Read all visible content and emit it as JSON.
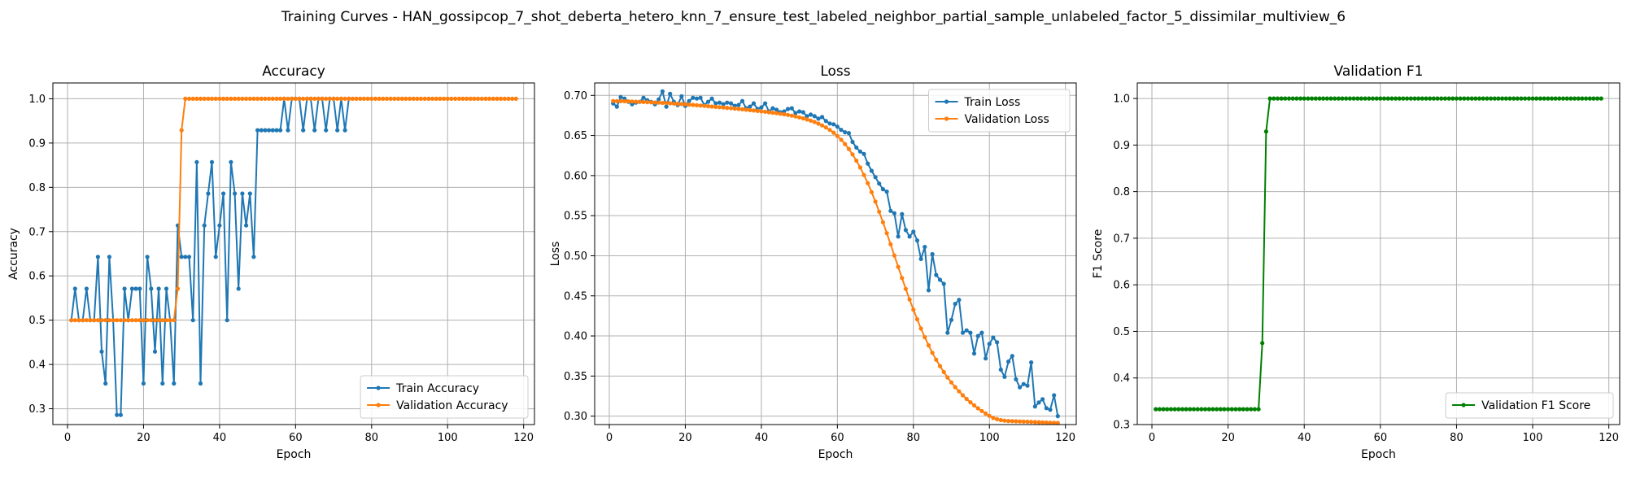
{
  "figure_title": "Training Curves - HAN_gossipcop_7_shot_deberta_hetero_knn_7_ensure_test_labeled_neighbor_partial_sample_unlabeled_factor_5_dissimilar_multiview_6",
  "colors": {
    "blue": "#1f77b4",
    "orange": "#ff7f0e",
    "green": "#008000",
    "grid": "#b0b0b0"
  },
  "chart_data": [
    {
      "type": "line",
      "title": "Accuracy",
      "xlabel": "Epoch",
      "ylabel": "Accuracy",
      "xlim": [
        -3.85,
        122.85
      ],
      "ylim": [
        0.2643,
        1.0357
      ],
      "xticks": [
        0,
        20,
        40,
        60,
        80,
        100,
        120
      ],
      "yticks": [
        0.3,
        0.4,
        0.5,
        0.6,
        0.7,
        0.8,
        0.9,
        1.0
      ],
      "ytick_labels": [
        "0.3",
        "0.4",
        "0.5",
        "0.6",
        "0.7",
        "0.8",
        "0.9",
        "1.0"
      ],
      "grid": true,
      "legend_position": "lower-right",
      "series": [
        {
          "name": "Train Accuracy",
          "color": "#1f77b4",
          "x_start": 1,
          "values": [
            0.5,
            0.571,
            0.5,
            0.5,
            0.571,
            0.5,
            0.5,
            0.643,
            0.429,
            0.357,
            0.643,
            0.5,
            0.286,
            0.286,
            0.571,
            0.5,
            0.571,
            0.571,
            0.571,
            0.357,
            0.643,
            0.571,
            0.429,
            0.571,
            0.357,
            0.571,
            0.5,
            0.357,
            0.714,
            0.643,
            0.643,
            0.643,
            0.5,
            0.857,
            0.357,
            0.714,
            0.786,
            0.857,
            0.643,
            0.714,
            0.786,
            0.5,
            0.857,
            0.786,
            0.571,
            0.786,
            0.714,
            0.786,
            0.643,
            0.929,
            0.929,
            0.929,
            0.929,
            0.929,
            0.929,
            0.929,
            1.0,
            0.929,
            1.0,
            1.0,
            1.0,
            0.929,
            1.0,
            1.0,
            0.929,
            1.0,
            1.0,
            0.929,
            1.0,
            1.0,
            0.929,
            1.0,
            0.929,
            1.0
          ]
        },
        {
          "name": "Validation Accuracy",
          "color": "#ff7f0e",
          "x_start": 1,
          "values": [
            0.5,
            0.5,
            0.5,
            0.5,
            0.5,
            0.5,
            0.5,
            0.5,
            0.5,
            0.5,
            0.5,
            0.5,
            0.5,
            0.5,
            0.5,
            0.5,
            0.5,
            0.5,
            0.5,
            0.5,
            0.5,
            0.5,
            0.5,
            0.5,
            0.5,
            0.5,
            0.5,
            0.5,
            0.571,
            0.929,
            1.0,
            1.0,
            1.0,
            1.0,
            1.0,
            1.0,
            1.0,
            1.0,
            1.0,
            1.0,
            1.0,
            1.0,
            1.0,
            1.0,
            1.0,
            1.0,
            1.0,
            1.0,
            1.0,
            1.0,
            1.0,
            1.0,
            1.0,
            1.0,
            1.0,
            1.0,
            1.0,
            1.0,
            1.0,
            1.0,
            1.0,
            1.0,
            1.0,
            1.0,
            1.0,
            1.0,
            1.0,
            1.0,
            1.0,
            1.0,
            1.0,
            1.0,
            1.0,
            1.0,
            1.0,
            1.0,
            1.0,
            1.0,
            1.0,
            1.0,
            1.0,
            1.0,
            1.0,
            1.0,
            1.0,
            1.0,
            1.0,
            1.0,
            1.0,
            1.0,
            1.0,
            1.0,
            1.0,
            1.0,
            1.0,
            1.0,
            1.0,
            1.0,
            1.0,
            1.0,
            1.0,
            1.0,
            1.0,
            1.0,
            1.0,
            1.0,
            1.0,
            1.0,
            1.0,
            1.0,
            1.0,
            1.0,
            1.0,
            1.0,
            1.0,
            1.0,
            1.0,
            1.0
          ]
        }
      ]
    },
    {
      "type": "line",
      "title": "Loss",
      "xlabel": "Epoch",
      "ylabel": "Loss",
      "xlim": [
        -3.85,
        122.85
      ],
      "ylim": [
        0.2895,
        0.7155
      ],
      "xticks": [
        0,
        20,
        40,
        60,
        80,
        100,
        120
      ],
      "yticks": [
        0.3,
        0.35,
        0.4,
        0.45,
        0.5,
        0.55,
        0.6,
        0.65,
        0.7
      ],
      "ytick_labels": [
        "0.30",
        "0.35",
        "0.40",
        "0.45",
        "0.50",
        "0.55",
        "0.60",
        "0.65",
        "0.70"
      ],
      "grid": true,
      "legend_position": "upper-right",
      "series": [
        {
          "name": "Train Loss",
          "color": "#1f77b4",
          "x_start": 1,
          "values": [
            0.69,
            0.686,
            0.698,
            0.696,
            0.692,
            0.689,
            0.691,
            0.692,
            0.697,
            0.694,
            0.692,
            0.689,
            0.695,
            0.705,
            0.686,
            0.702,
            0.692,
            0.688,
            0.699,
            0.687,
            0.693,
            0.697,
            0.696,
            0.697,
            0.688,
            0.692,
            0.696,
            0.69,
            0.691,
            0.689,
            0.691,
            0.69,
            0.687,
            0.688,
            0.693,
            0.684,
            0.686,
            0.69,
            0.683,
            0.685,
            0.69,
            0.68,
            0.684,
            0.682,
            0.679,
            0.68,
            0.683,
            0.684,
            0.678,
            0.68,
            0.679,
            0.674,
            0.676,
            0.674,
            0.671,
            0.673,
            0.668,
            0.665,
            0.664,
            0.661,
            0.657,
            0.654,
            0.653,
            0.642,
            0.635,
            0.63,
            0.627,
            0.615,
            0.606,
            0.598,
            0.59,
            0.583,
            0.58,
            0.556,
            0.553,
            0.524,
            0.552,
            0.532,
            0.524,
            0.53,
            0.519,
            0.496,
            0.511,
            0.457,
            0.502,
            0.476,
            0.47,
            0.465,
            0.404,
            0.42,
            0.44,
            0.445,
            0.404,
            0.407,
            0.404,
            0.378,
            0.4,
            0.404,
            0.372,
            0.39,
            0.398,
            0.392,
            0.358,
            0.349,
            0.368,
            0.375,
            0.346,
            0.336,
            0.34,
            0.338,
            0.367,
            0.312,
            0.317,
            0.321,
            0.31,
            0.308,
            0.326,
            0.3
          ]
        },
        {
          "name": "Validation Loss",
          "color": "#ff7f0e",
          "x_start": 1,
          "values": [
            0.693,
            0.6929,
            0.6928,
            0.6927,
            0.6926,
            0.6924,
            0.6922,
            0.692,
            0.6918,
            0.6916,
            0.6914,
            0.6912,
            0.691,
            0.6907,
            0.6904,
            0.6901,
            0.6898,
            0.6895,
            0.6892,
            0.6889,
            0.6885,
            0.6881,
            0.6877,
            0.6873,
            0.6869,
            0.6865,
            0.6861,
            0.6857,
            0.6853,
            0.6849,
            0.6845,
            0.6841,
            0.6836,
            0.6831,
            0.6826,
            0.6821,
            0.6816,
            0.6811,
            0.6806,
            0.6801,
            0.6796,
            0.679,
            0.6784,
            0.6778,
            0.6772,
            0.6764,
            0.6756,
            0.6747,
            0.6737,
            0.6726,
            0.6714,
            0.67,
            0.6685,
            0.6668,
            0.6648,
            0.6626,
            0.66,
            0.657,
            0.6535,
            0.6494,
            0.6447,
            0.6393,
            0.6332,
            0.6263,
            0.6186,
            0.6101,
            0.6007,
            0.5905,
            0.5794,
            0.5675,
            0.5549,
            0.5418,
            0.5282,
            0.5143,
            0.5003,
            0.4862,
            0.4723,
            0.4587,
            0.4455,
            0.4328,
            0.4207,
            0.4092,
            0.3984,
            0.3883,
            0.379,
            0.3703,
            0.3624,
            0.355,
            0.3482,
            0.342,
            0.3362,
            0.3309,
            0.326,
            0.3215,
            0.3173,
            0.3134,
            0.3098,
            0.3064,
            0.3033,
            0.3004,
            0.2977,
            0.2962,
            0.2951,
            0.2944,
            0.294,
            0.2938,
            0.2936,
            0.2934,
            0.2932,
            0.293,
            0.2928,
            0.2926,
            0.2924,
            0.2922,
            0.292,
            0.2918,
            0.2916,
            0.2914
          ]
        }
      ]
    },
    {
      "type": "line",
      "title": "Validation F1",
      "xlabel": "Epoch",
      "ylabel": "F1 Score",
      "xlim": [
        -3.85,
        122.85
      ],
      "ylim": [
        0.3,
        1.0333
      ],
      "xticks": [
        0,
        20,
        40,
        60,
        80,
        100,
        120
      ],
      "yticks": [
        0.3,
        0.4,
        0.5,
        0.6,
        0.7,
        0.8,
        0.9,
        1.0
      ],
      "ytick_labels": [
        "0.3",
        "0.4",
        "0.5",
        "0.6",
        "0.7",
        "0.8",
        "0.9",
        "1.0"
      ],
      "grid": true,
      "legend_position": "lower-right",
      "series": [
        {
          "name": "Validation F1 Score",
          "color": "#008000",
          "x_start": 1,
          "values": [
            0.333,
            0.333,
            0.333,
            0.333,
            0.333,
            0.333,
            0.333,
            0.333,
            0.333,
            0.333,
            0.333,
            0.333,
            0.333,
            0.333,
            0.333,
            0.333,
            0.333,
            0.333,
            0.333,
            0.333,
            0.333,
            0.333,
            0.333,
            0.333,
            0.333,
            0.333,
            0.333,
            0.333,
            0.475,
            0.929,
            1.0,
            1.0,
            1.0,
            1.0,
            1.0,
            1.0,
            1.0,
            1.0,
            1.0,
            1.0,
            1.0,
            1.0,
            1.0,
            1.0,
            1.0,
            1.0,
            1.0,
            1.0,
            1.0,
            1.0,
            1.0,
            1.0,
            1.0,
            1.0,
            1.0,
            1.0,
            1.0,
            1.0,
            1.0,
            1.0,
            1.0,
            1.0,
            1.0,
            1.0,
            1.0,
            1.0,
            1.0,
            1.0,
            1.0,
            1.0,
            1.0,
            1.0,
            1.0,
            1.0,
            1.0,
            1.0,
            1.0,
            1.0,
            1.0,
            1.0,
            1.0,
            1.0,
            1.0,
            1.0,
            1.0,
            1.0,
            1.0,
            1.0,
            1.0,
            1.0,
            1.0,
            1.0,
            1.0,
            1.0,
            1.0,
            1.0,
            1.0,
            1.0,
            1.0,
            1.0,
            1.0,
            1.0,
            1.0,
            1.0,
            1.0,
            1.0,
            1.0,
            1.0,
            1.0,
            1.0,
            1.0,
            1.0,
            1.0,
            1.0,
            1.0,
            1.0,
            1.0,
            1.0
          ]
        }
      ]
    }
  ]
}
